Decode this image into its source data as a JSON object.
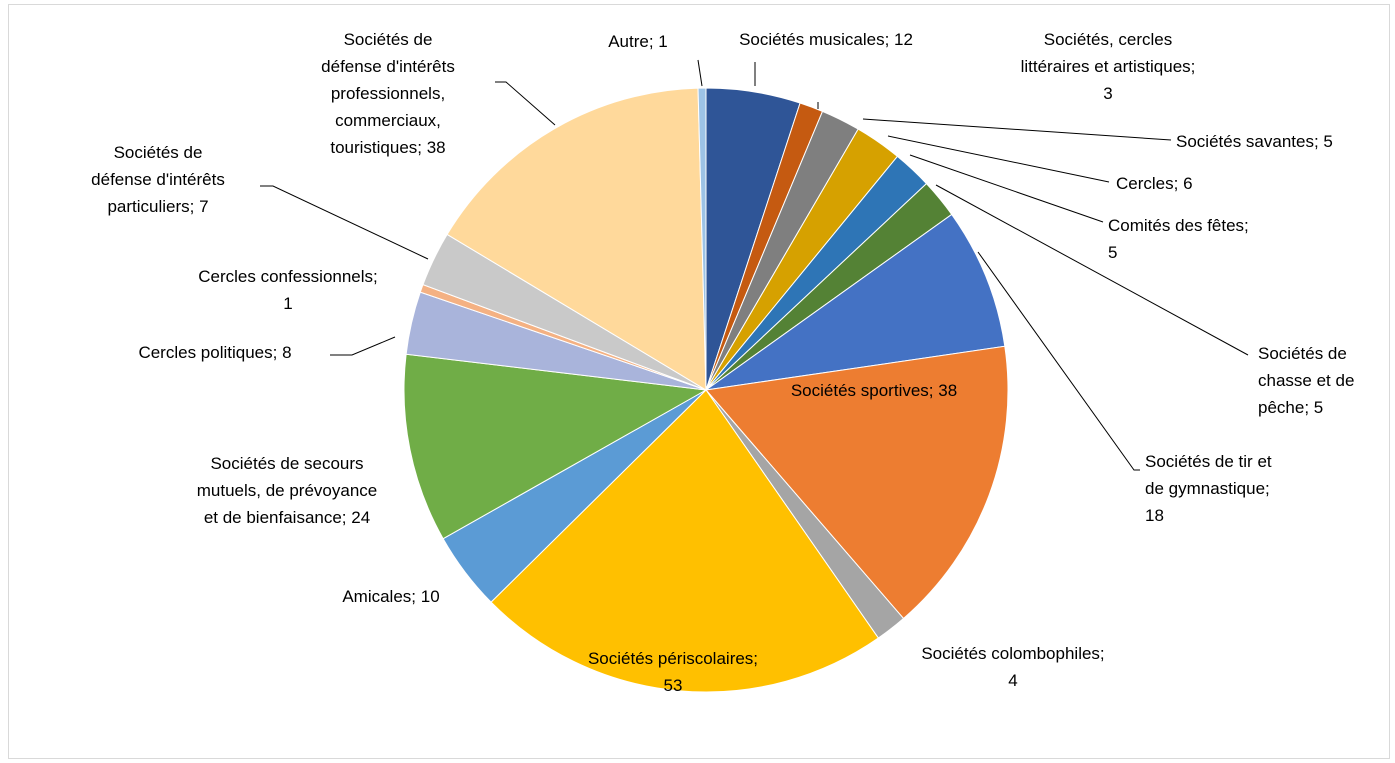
{
  "chart_data": {
    "type": "pie",
    "title": "",
    "legend": "none",
    "slices": [
      {
        "label": "Sociétés musicales",
        "value": 12,
        "color": "#2f5597",
        "text": [
          "Sociétés musicales; 12"
        ]
      },
      {
        "label": "Sociétés, cercles littéraires et artistiques",
        "value": 3,
        "color": "#c55a11",
        "text": [
          "Sociétés, cercles",
          "littéraires et artistiques;",
          "3"
        ]
      },
      {
        "label": "Sociétés savantes",
        "value": 5,
        "color": "#7f7f7f",
        "text": [
          "Sociétés savantes; 5"
        ]
      },
      {
        "label": "Cercles",
        "value": 6,
        "color": "#d6a100",
        "text": [
          "Cercles; 6"
        ]
      },
      {
        "label": "Comités des fêtes",
        "value": 5,
        "color": "#2e75b6",
        "text": [
          "Comités des fêtes;",
          "5"
        ]
      },
      {
        "label": "Sociétés de chasse et de pêche",
        "value": 5,
        "color": "#548235",
        "text": [
          "Sociétés de",
          "chasse et de",
          "pêche; 5"
        ]
      },
      {
        "label": "Sociétés de tir et de gymnastique",
        "value": 18,
        "color": "#4472c4",
        "text": [
          "Sociétés de tir et",
          "de gymnastique;",
          "18"
        ]
      },
      {
        "label": "Sociétés sportives",
        "value": 38,
        "color": "#ed7d31",
        "text": [
          "Sociétés sportives; 38"
        ]
      },
      {
        "label": "Sociétés colombophiles",
        "value": 4,
        "color": "#a5a5a5",
        "text": [
          "Sociétés colombophiles;",
          "4"
        ]
      },
      {
        "label": "Sociétés périscolaires",
        "value": 53,
        "color": "#ffc000",
        "text": [
          "Sociétés périscolaires;",
          "53"
        ]
      },
      {
        "label": "Amicales",
        "value": 10,
        "color": "#5b9bd5",
        "text": [
          "Amicales; 10"
        ]
      },
      {
        "label": "Sociétés de secours mutuels, de prévoyance et de bienfaisance",
        "value": 24,
        "color": "#70ad47",
        "text": [
          "Sociétés de secours",
          "mutuels, de prévoyance",
          "et de bienfaisance; 24"
        ]
      },
      {
        "label": "Cercles politiques",
        "value": 8,
        "color": "#a9b4db",
        "text": [
          "Cercles politiques; 8"
        ]
      },
      {
        "label": "Cercles confessionnels",
        "value": 1,
        "color": "#f4b183",
        "text": [
          "Cercles confessionnels;",
          "1"
        ]
      },
      {
        "label": "Sociétés de défense d'intérêts particuliers",
        "value": 7,
        "color": "#c9c9c9",
        "text": [
          "Sociétés de",
          "défense d'intérêts",
          "particuliers; 7"
        ]
      },
      {
        "label": "Sociétés de défense d'intérêts professionnels, commerciaux, touristiques",
        "value": 38,
        "color": "#ffd99b",
        "text": [
          "Sociétés de",
          "défense d'intérêts",
          "professionnels,",
          "commerciaux,",
          "touristiques; 38"
        ]
      },
      {
        "label": "Autre",
        "value": 1,
        "color": "#9dc3e6",
        "text": [
          "Autre; 1"
        ]
      }
    ]
  }
}
